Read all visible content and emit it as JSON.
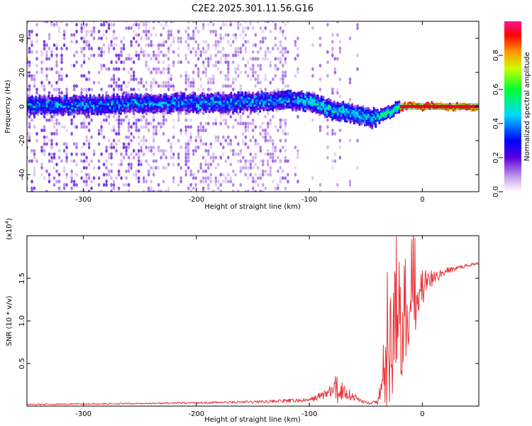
{
  "title": "C2E2.2025.301.11.56.G16",
  "chart_data": [
    {
      "type": "heatmap",
      "xlabel": "Height of straight line (km)",
      "ylabel": "Frequency (Hz)",
      "xlim": [
        -350,
        50
      ],
      "ylim": [
        -50,
        50
      ],
      "xticks": [
        -300,
        -200,
        -100,
        0
      ],
      "yticks": [
        -40,
        -20,
        0,
        20,
        40
      ],
      "ridge": {
        "x": [
          -350,
          -300,
          -250,
          -200,
          -150,
          -120,
          -100,
          -80,
          -60,
          -45,
          -35,
          -20,
          -10,
          0,
          10,
          20,
          50
        ],
        "y": [
          1,
          1,
          2,
          2,
          3,
          4,
          3,
          -2,
          -4,
          -7,
          -5,
          0,
          1,
          0,
          1,
          0,
          0
        ]
      },
      "colorbar": {
        "label": "Normalized spectral amplitude",
        "range": [
          0,
          1
        ],
        "ticks": [
          "0.0",
          "0.2",
          "0.4",
          "0.6",
          "0.8"
        ]
      }
    },
    {
      "type": "line",
      "xlabel": "Height of straight line (km)",
      "ylabel": "SNR (10 * v/v)",
      "scale_label": "(x10",
      "scale_exp": "4",
      "scale_close": ")",
      "xlim": [
        -350,
        50
      ],
      "ylim": [
        0,
        2.0
      ],
      "xticks": [
        -300,
        -200,
        -100,
        0
      ],
      "yticks": [
        "0.5",
        "1.0",
        "1.5"
      ],
      "color": "#e8363a",
      "envelope": {
        "x": [
          -350,
          -250,
          -150,
          -100,
          -90,
          -80,
          -75,
          -70,
          -60,
          -50,
          -45,
          -40,
          -35,
          -30,
          -25,
          -20,
          -15,
          -10,
          0,
          10,
          20,
          30,
          40,
          50
        ],
        "base": [
          0.02,
          0.03,
          0.05,
          0.07,
          0.12,
          0.18,
          0.2,
          0.18,
          0.1,
          0.04,
          0.03,
          0.05,
          0.2,
          0.55,
          0.8,
          1.0,
          1.1,
          1.2,
          1.4,
          1.5,
          1.58,
          1.62,
          1.65,
          1.68
        ],
        "spread": [
          0.01,
          0.01,
          0.02,
          0.03,
          0.06,
          0.1,
          0.28,
          0.12,
          0.06,
          0.02,
          0.02,
          0.04,
          0.25,
          0.75,
          0.85,
          0.9,
          0.8,
          0.6,
          0.3,
          0.1,
          0.05,
          0.03,
          0.02,
          0.02
        ]
      }
    }
  ]
}
